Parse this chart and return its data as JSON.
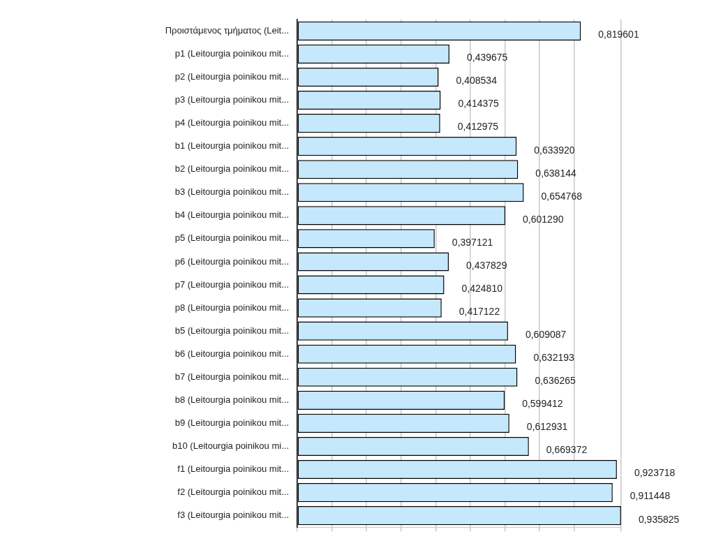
{
  "chart_data": {
    "type": "bar",
    "orientation": "horizontal",
    "categories": [
      "Προιστάμενος τμήματος (Leit...",
      "p1 (Leitourgia poinikou mit...",
      "p2 (Leitourgia poinikou mit...",
      "p3 (Leitourgia poinikou mit...",
      "p4 (Leitourgia poinikou mit...",
      "b1 (Leitourgia poinikou mit...",
      "b2 (Leitourgia poinikou mit...",
      "b3 (Leitourgia poinikou mit...",
      "b4 (Leitourgia poinikou mit...",
      "p5 (Leitourgia poinikou mit...",
      "p6 (Leitourgia poinikou mit...",
      "p7 (Leitourgia poinikou mit...",
      "p8 (Leitourgia poinikou mit...",
      "b5 (Leitourgia poinikou mit...",
      "b6 (Leitourgia poinikou mit...",
      "b7 (Leitourgia poinikou mit...",
      "b8 (Leitourgia poinikou mit...",
      "b9 (Leitourgia poinikou mit...",
      "b10 (Leitourgia poinikou mi...",
      "f1 (Leitourgia poinikou mit...",
      "f2 (Leitourgia poinikou mit...",
      "f3 (Leitourgia poinikou mit..."
    ],
    "values": [
      0.819601,
      0.439675,
      0.408534,
      0.414375,
      0.412975,
      0.63392,
      0.638144,
      0.654768,
      0.60129,
      0.397121,
      0.437829,
      0.42481,
      0.417122,
      0.609087,
      0.632193,
      0.636265,
      0.599412,
      0.612931,
      0.669372,
      0.923718,
      0.911448,
      0.935825
    ],
    "value_labels": [
      "0,819601",
      "0,439675",
      "0,408534",
      "0,414375",
      "0,412975",
      "0,633920",
      "0,638144",
      "0,654768",
      "0,601290",
      "0,397121",
      "0,437829",
      "0,424810",
      "0,417122",
      "0,609087",
      "0,632193",
      "0,636265",
      "0,599412",
      "0,612931",
      "0,669372",
      "0,923718",
      "0,911448",
      "0,935825"
    ],
    "color": "#c5e8fc",
    "xlim": [
      0,
      0.936
    ],
    "grid": "x",
    "legend": false
  }
}
